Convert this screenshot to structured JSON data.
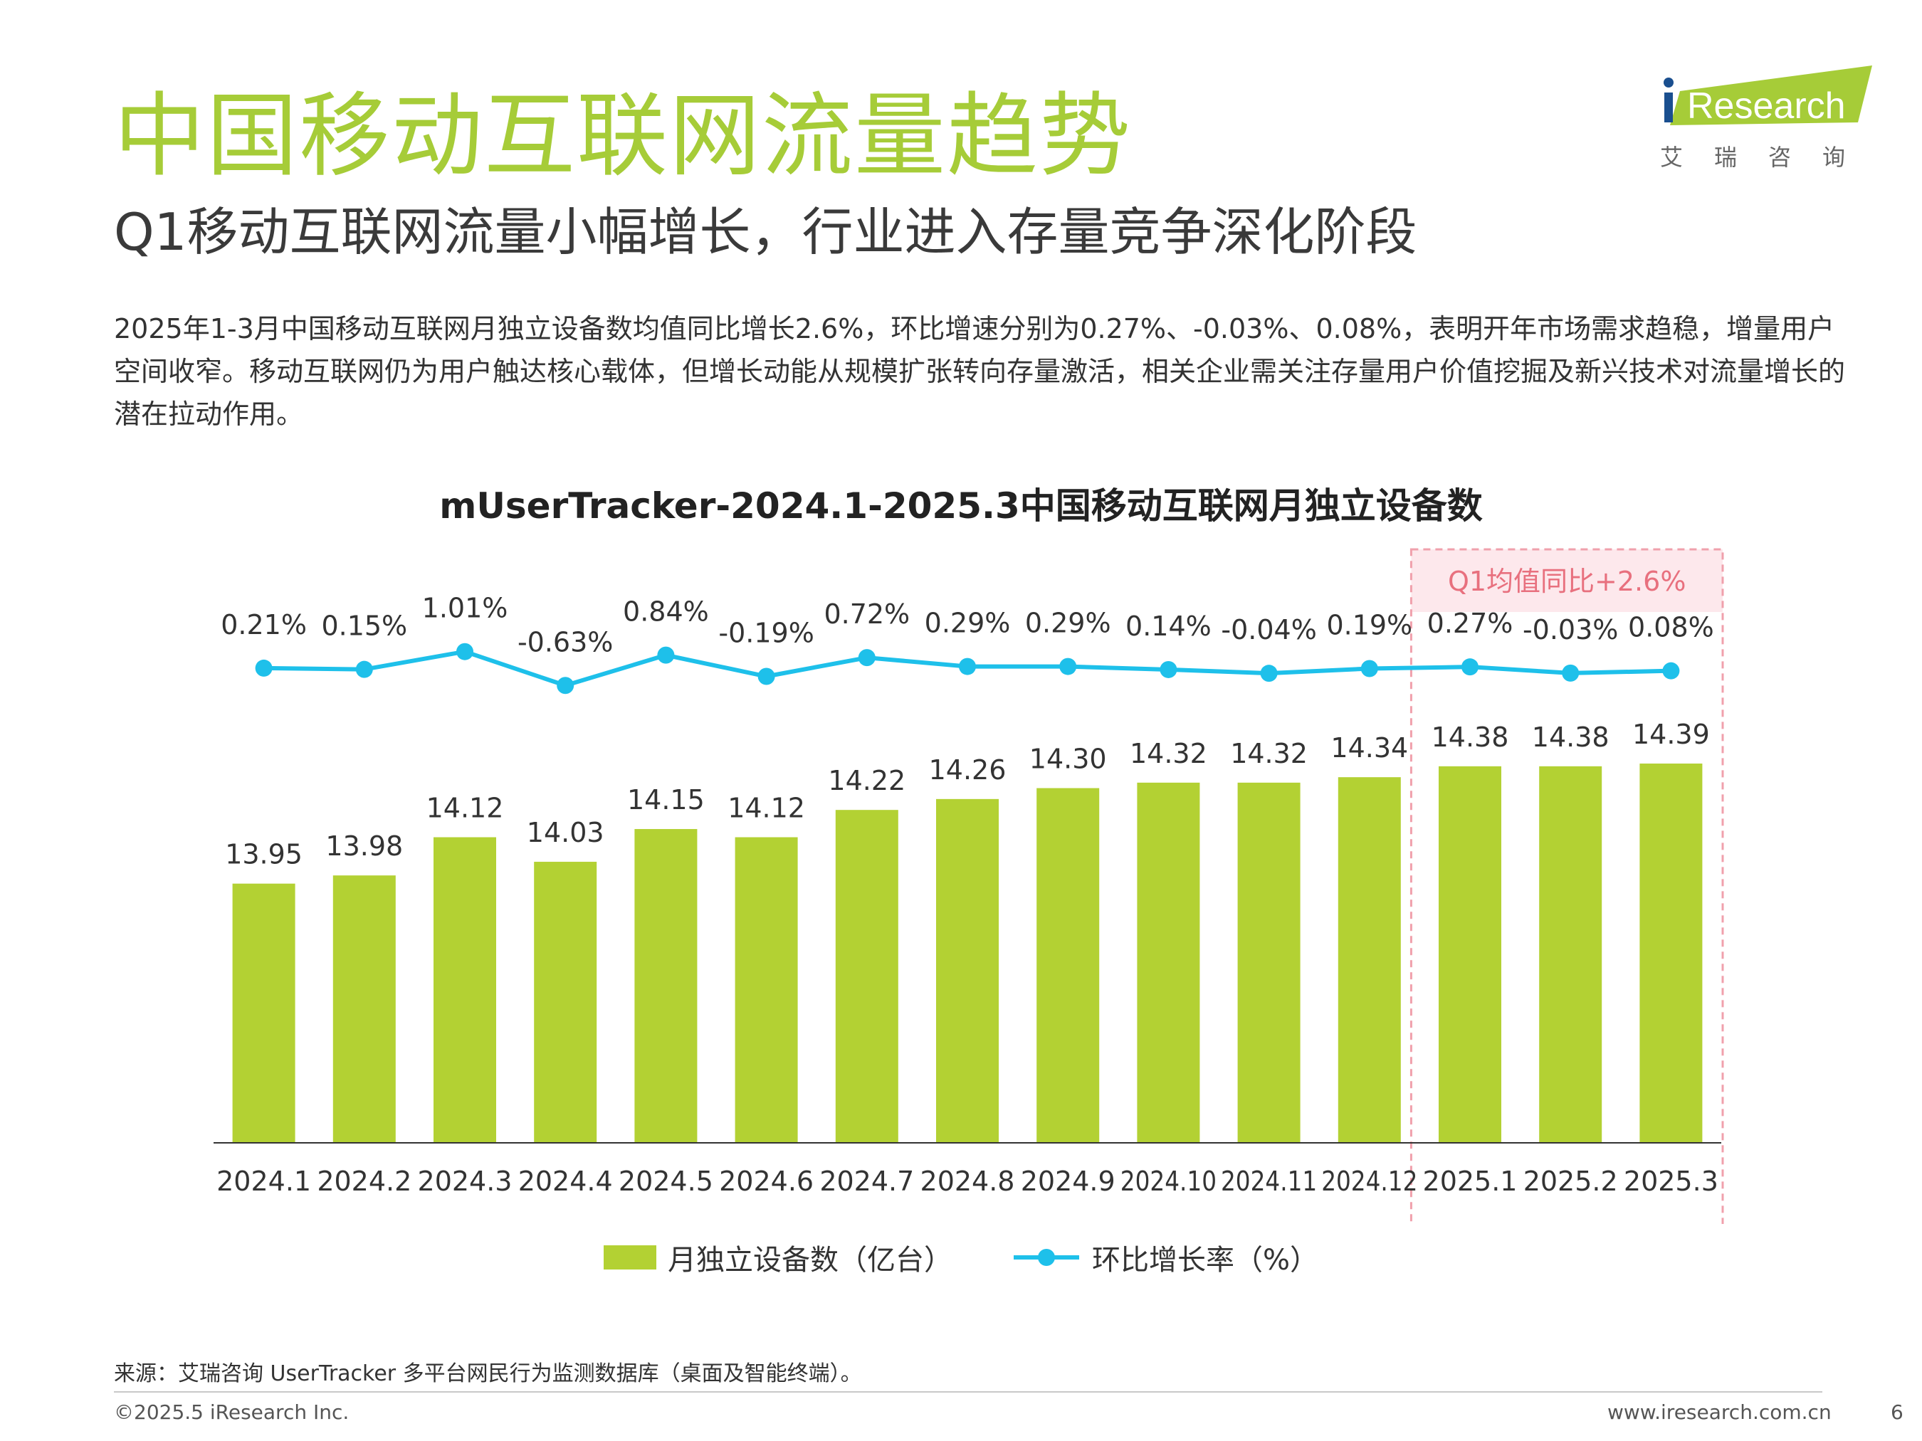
{
  "header": {
    "title": "中国移动互联网流量趋势",
    "subtitle": "Q1移动互联网流量小幅增长，行业进入存量竞争深化阶段",
    "description": "2025年1-3月中国移动互联网月独立设备数均值同比增长2.6%，环比增速分别为0.27%、-0.03%、0.08%，表明开年市场需求趋稳，增量用户空间收窄。移动互联网仍为用户触达核心载体，但增长动能从规模扩张转向存量激活，相关企业需关注存量用户价值挖掘及新兴技术对流量增长的潜在拉动作用。"
  },
  "logo": {
    "brand": "iResearch",
    "cn": "艾瑞咨询"
  },
  "chart_data": {
    "type": "bar",
    "title": "mUserTracker-2024.1-2025.3中国移动互联网月独立设备数",
    "categories": [
      "2024.1",
      "2024.2",
      "2024.3",
      "2024.4",
      "2024.5",
      "2024.6",
      "2024.7",
      "2024.8",
      "2024.9",
      "2024.10",
      "2024.11",
      "2024.12",
      "2025.1",
      "2025.2",
      "2025.3"
    ],
    "series": [
      {
        "name": "月独立设备数（亿台）",
        "type": "bar",
        "color": "#b3d133",
        "values": [
          13.95,
          13.98,
          14.12,
          14.03,
          14.15,
          14.12,
          14.22,
          14.26,
          14.3,
          14.32,
          14.32,
          14.34,
          14.38,
          14.38,
          14.39
        ],
        "labels": [
          "13.95",
          "13.98",
          "14.12",
          "14.03",
          "14.15",
          "14.12",
          "14.22",
          "14.26",
          "14.30",
          "14.32",
          "14.32",
          "14.34",
          "14.38",
          "14.38",
          "14.39"
        ]
      },
      {
        "name": "环比增长率（%）",
        "type": "line",
        "color": "#1ec0ea",
        "values": [
          0.21,
          0.15,
          1.01,
          -0.63,
          0.84,
          -0.19,
          0.72,
          0.29,
          0.29,
          0.14,
          -0.04,
          0.19,
          0.27,
          -0.03,
          0.08
        ],
        "labels": [
          "0.21%",
          "0.15%",
          "1.01%",
          "-0.63%",
          "0.84%",
          "-0.19%",
          "0.72%",
          "0.29%",
          "0.29%",
          "0.14%",
          "-0.04%",
          "0.19%",
          "0.27%",
          "-0.03%",
          "0.08%"
        ]
      }
    ],
    "annotation": {
      "text": "Q1均值同比+2.6%",
      "categories": [
        "2025.1",
        "2025.2",
        "2025.3"
      ],
      "color": "#f0a0ac"
    },
    "legend": "bottom",
    "grid": false
  },
  "footer": {
    "source": "来源：艾瑞咨询 UserTracker 多平台网民行为监测数据库（桌面及智能终端）。",
    "copyright": "©2025.5 iResearch Inc.",
    "website": "www.iresearch.com.cn",
    "page": "6"
  }
}
